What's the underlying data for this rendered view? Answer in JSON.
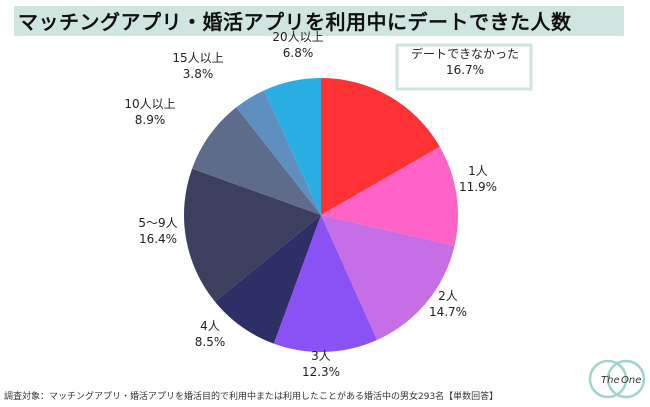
{
  "title": "マッチングアプリ・婚活アプリを利用中にデートできた人数",
  "footnote": "調査対象：マッチングアプリ・婚活アプリを婚活目的で利用中または利用したことがある婚活中の男女293名【単数回答】",
  "logo": {
    "left": "The",
    "right": "One"
  },
  "chart_data": {
    "type": "pie",
    "title": "マッチングアプリ・婚活アプリを利用中にデートできた人数",
    "unit": "%",
    "slices": [
      {
        "label": "デートできなかった",
        "value": 16.7,
        "display": "16.7%",
        "color": "#fe3234"
      },
      {
        "label": "1人",
        "value": 11.9,
        "display": "11.9%",
        "color": "#ff62c6"
      },
      {
        "label": "2人",
        "value": 14.7,
        "display": "14.7%",
        "color": "#c56ee6"
      },
      {
        "label": "3人",
        "value": 12.3,
        "display": "12.3%",
        "color": "#8a51f4"
      },
      {
        "label": "4人",
        "value": 8.5,
        "display": "8.5%",
        "color": "#2e2f67"
      },
      {
        "label": "5～9人",
        "value": 16.4,
        "display": "16.4%",
        "color": "#3d3f5e"
      },
      {
        "label": "10人以上",
        "value": 8.9,
        "display": "8.9%",
        "color": "#5f6b8a"
      },
      {
        "label": "15人以上",
        "value": 3.8,
        "display": "3.8%",
        "color": "#5e8fbf"
      },
      {
        "label": "20人以上",
        "value": 6.8,
        "display": "6.8%",
        "color": "#29aee3"
      }
    ]
  }
}
